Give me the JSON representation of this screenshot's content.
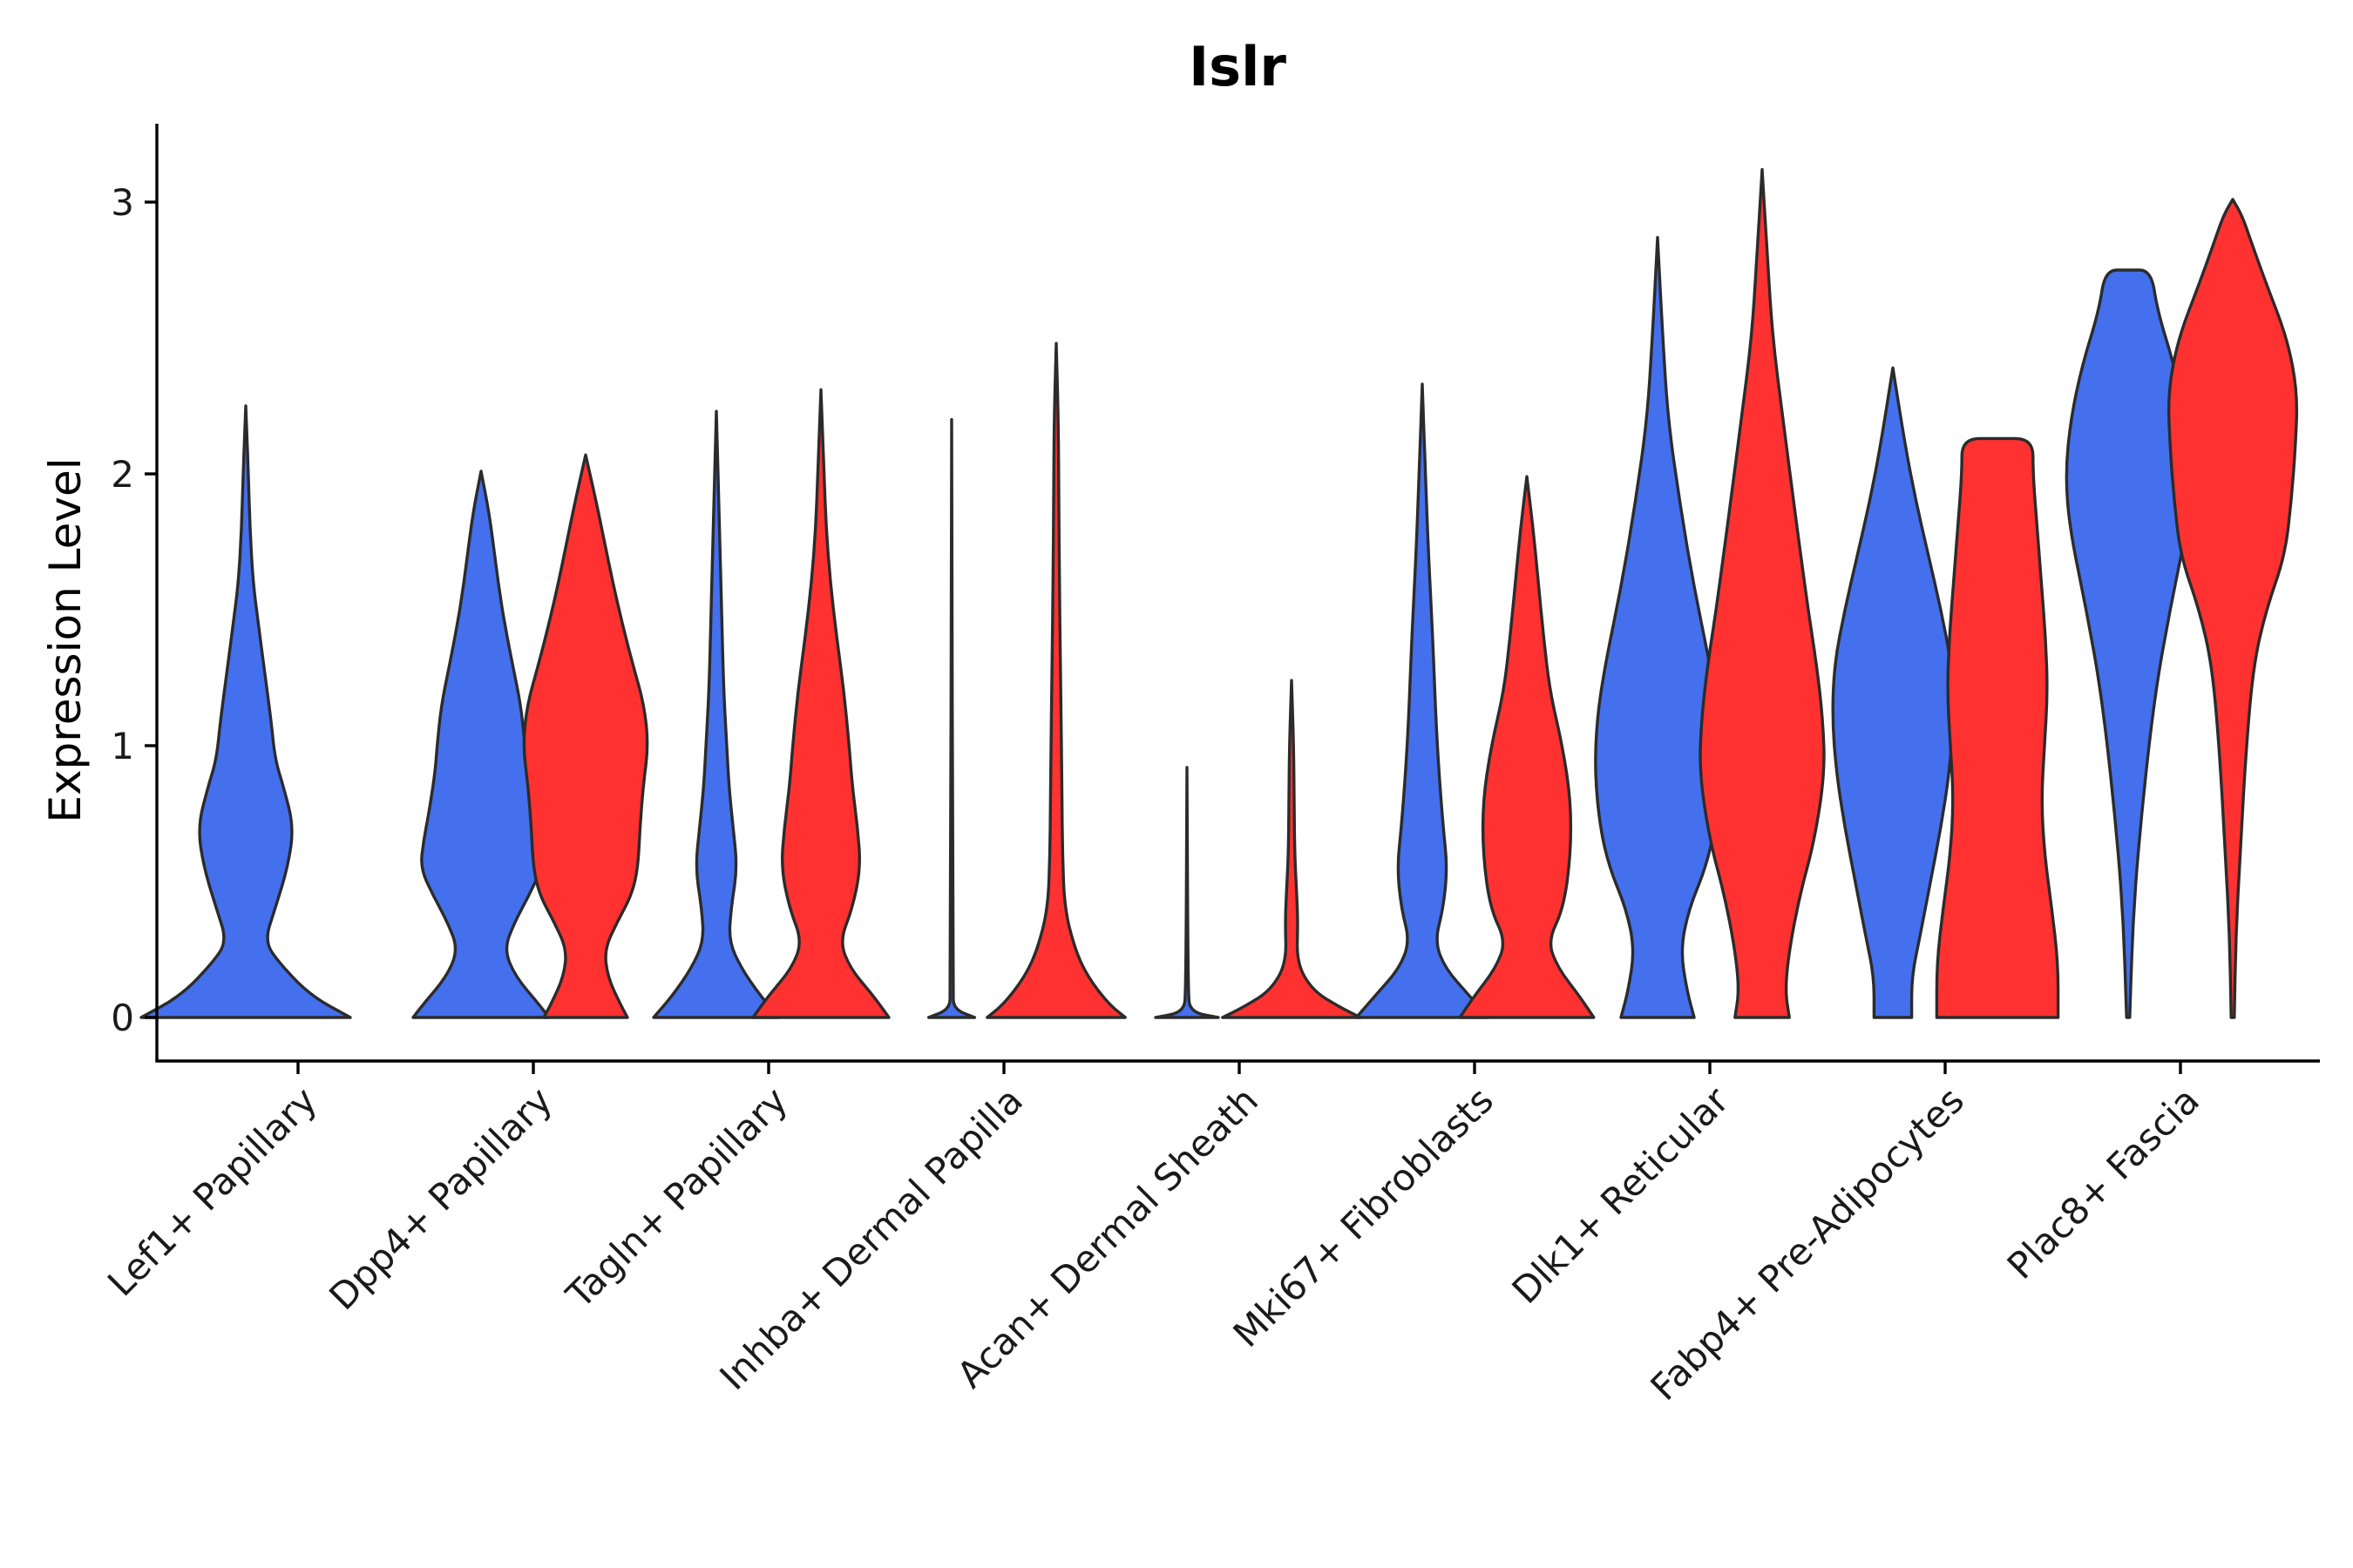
{
  "colors": {
    "blue": "#4470EE",
    "red": "#FF3131",
    "outline": "#2B2B2B",
    "axis": "#000000"
  },
  "chart_data": {
    "type": "violin",
    "title": "Islr",
    "xlabel": "",
    "ylabel": "Expression Level",
    "ylim": [
      -0.16,
      3.3
    ],
    "yticks": [
      0,
      1,
      2,
      3
    ],
    "ytick_labels": [
      "0",
      "1",
      "2",
      "3"
    ],
    "series": [
      {
        "name": "group1",
        "color": "#4470EE"
      },
      {
        "name": "group2",
        "color": "#FF3131"
      }
    ],
    "categories": [
      "Lef1+ Papillary",
      "Dpp4+ Papillary",
      "Tagln+ Papillary",
      "Inhba+ Dermal Papilla",
      "Acan+ Dermal Sheath",
      "Mki67+ Fibroblasts",
      "Dlk1+ Reticular",
      "Fabp4+ Pre-Adipocytes",
      "Plac8+ Fascia"
    ],
    "violins": [
      {
        "category": "Lef1+ Papillary",
        "series": "group1",
        "max": 2.25,
        "profile": [
          [
            0,
            1.0
          ],
          [
            0.08,
            0.62
          ],
          [
            0.2,
            0.32
          ],
          [
            0.28,
            0.18
          ],
          [
            0.4,
            0.28
          ],
          [
            0.55,
            0.4
          ],
          [
            0.7,
            0.46
          ],
          [
            0.85,
            0.36
          ],
          [
            0.95,
            0.28
          ],
          [
            1.1,
            0.24
          ],
          [
            1.3,
            0.17
          ],
          [
            1.45,
            0.12
          ],
          [
            1.6,
            0.07
          ],
          [
            1.8,
            0.04
          ],
          [
            2.0,
            0.025
          ],
          [
            2.25,
            0
          ]
        ]
      },
      {
        "category": "Dpp4+ Papillary",
        "series": "group1",
        "max": 2.01,
        "profile": [
          [
            0,
            0.65
          ],
          [
            0.05,
            0.55
          ],
          [
            0.15,
            0.33
          ],
          [
            0.25,
            0.22
          ],
          [
            0.35,
            0.32
          ],
          [
            0.45,
            0.46
          ],
          [
            0.55,
            0.58
          ],
          [
            0.65,
            0.55
          ],
          [
            0.75,
            0.5
          ],
          [
            0.9,
            0.44
          ],
          [
            1.0,
            0.42
          ],
          [
            1.15,
            0.38
          ],
          [
            1.3,
            0.3
          ],
          [
            1.5,
            0.2
          ],
          [
            1.7,
            0.13
          ],
          [
            1.85,
            0.08
          ],
          [
            2.01,
            0
          ]
        ]
      },
      {
        "category": "Dpp4+ Papillary",
        "series": "group2",
        "max": 2.07,
        "profile": [
          [
            0,
            0.4
          ],
          [
            0.05,
            0.33
          ],
          [
            0.15,
            0.21
          ],
          [
            0.25,
            0.18
          ],
          [
            0.35,
            0.3
          ],
          [
            0.45,
            0.44
          ],
          [
            0.55,
            0.5
          ],
          [
            0.7,
            0.52
          ],
          [
            0.85,
            0.55
          ],
          [
            1.0,
            0.6
          ],
          [
            1.15,
            0.56
          ],
          [
            1.3,
            0.45
          ],
          [
            1.45,
            0.35
          ],
          [
            1.6,
            0.26
          ],
          [
            1.75,
            0.18
          ],
          [
            1.9,
            0.1
          ],
          [
            2.07,
            0
          ]
        ]
      },
      {
        "category": "Tagln+ Papillary",
        "series": "group1",
        "max": 2.23,
        "profile": [
          [
            0,
            0.6
          ],
          [
            0.08,
            0.42
          ],
          [
            0.18,
            0.24
          ],
          [
            0.28,
            0.12
          ],
          [
            0.4,
            0.14
          ],
          [
            0.55,
            0.2
          ],
          [
            0.7,
            0.16
          ],
          [
            0.85,
            0.12
          ],
          [
            1.0,
            0.1
          ],
          [
            1.2,
            0.07
          ],
          [
            1.5,
            0.05
          ],
          [
            1.8,
            0.03
          ],
          [
            2.23,
            0
          ]
        ]
      },
      {
        "category": "Tagln+ Papillary",
        "series": "group2",
        "max": 2.31,
        "profile": [
          [
            0,
            0.65
          ],
          [
            0.08,
            0.5
          ],
          [
            0.18,
            0.28
          ],
          [
            0.28,
            0.18
          ],
          [
            0.4,
            0.3
          ],
          [
            0.55,
            0.38
          ],
          [
            0.7,
            0.35
          ],
          [
            0.85,
            0.3
          ],
          [
            1.0,
            0.27
          ],
          [
            1.2,
            0.22
          ],
          [
            1.4,
            0.15
          ],
          [
            1.6,
            0.09
          ],
          [
            1.8,
            0.05
          ],
          [
            2.0,
            0.03
          ],
          [
            2.31,
            0
          ]
        ]
      },
      {
        "category": "Inhba+ Dermal Papilla",
        "series": "group1",
        "max": 2.2,
        "profile": [
          [
            0,
            0.22
          ],
          [
            0.03,
            0.02
          ],
          [
            0.1,
            0.012
          ],
          [
            2.2,
            0
          ]
        ]
      },
      {
        "category": "Inhba+ Dermal Papilla",
        "series": "group2",
        "max": 2.48,
        "profile": [
          [
            0,
            0.66
          ],
          [
            0.05,
            0.5
          ],
          [
            0.15,
            0.3
          ],
          [
            0.25,
            0.18
          ],
          [
            0.4,
            0.08
          ],
          [
            0.6,
            0.06
          ],
          [
            0.8,
            0.055
          ],
          [
            1.0,
            0.05
          ],
          [
            1.3,
            0.04
          ],
          [
            1.6,
            0.03
          ],
          [
            1.9,
            0.025
          ],
          [
            2.2,
            0.02
          ],
          [
            2.48,
            0
          ]
        ]
      },
      {
        "category": "Acan+ Dermal Sheath",
        "series": "group1",
        "max": 0.92,
        "profile": [
          [
            0,
            0.3
          ],
          [
            0.02,
            0.03
          ],
          [
            0.1,
            0.01
          ],
          [
            0.92,
            0
          ]
        ]
      },
      {
        "category": "Acan+ Dermal Sheath",
        "series": "group2",
        "max": 1.24,
        "profile": [
          [
            0,
            0.66
          ],
          [
            0.04,
            0.45
          ],
          [
            0.1,
            0.2
          ],
          [
            0.2,
            0.05
          ],
          [
            0.35,
            0.06
          ],
          [
            0.45,
            0.05
          ],
          [
            0.6,
            0.03
          ],
          [
            0.8,
            0.025
          ],
          [
            1.0,
            0.02
          ],
          [
            1.24,
            0
          ]
        ]
      },
      {
        "category": "Mki67+ Fibroblasts",
        "series": "group1",
        "max": 2.33,
        "profile": [
          [
            0,
            0.63
          ],
          [
            0.08,
            0.45
          ],
          [
            0.18,
            0.22
          ],
          [
            0.28,
            0.12
          ],
          [
            0.4,
            0.2
          ],
          [
            0.55,
            0.24
          ],
          [
            0.7,
            0.2
          ],
          [
            0.9,
            0.16
          ],
          [
            1.1,
            0.13
          ],
          [
            1.4,
            0.1
          ],
          [
            1.7,
            0.06
          ],
          [
            2.0,
            0.03
          ],
          [
            2.33,
            0
          ]
        ]
      },
      {
        "category": "Mki67+ Fibroblasts",
        "series": "group2",
        "max": 1.99,
        "profile": [
          [
            0,
            0.64
          ],
          [
            0.08,
            0.5
          ],
          [
            0.18,
            0.3
          ],
          [
            0.28,
            0.2
          ],
          [
            0.4,
            0.35
          ],
          [
            0.6,
            0.42
          ],
          [
            0.8,
            0.42
          ],
          [
            1.0,
            0.34
          ],
          [
            1.2,
            0.22
          ],
          [
            1.4,
            0.16
          ],
          [
            1.6,
            0.11
          ],
          [
            1.8,
            0.06
          ],
          [
            1.99,
            0
          ]
        ]
      },
      {
        "category": "Dlk1+ Reticular",
        "series": "group1",
        "max": 2.87,
        "profile": [
          [
            0,
            0.35
          ],
          [
            0.1,
            0.28
          ],
          [
            0.25,
            0.22
          ],
          [
            0.4,
            0.3
          ],
          [
            0.55,
            0.46
          ],
          [
            0.7,
            0.55
          ],
          [
            0.9,
            0.6
          ],
          [
            1.1,
            0.58
          ],
          [
            1.3,
            0.5
          ],
          [
            1.6,
            0.34
          ],
          [
            1.9,
            0.21
          ],
          [
            2.2,
            0.1
          ],
          [
            2.5,
            0.05
          ],
          [
            2.87,
            0
          ]
        ]
      },
      {
        "category": "Dlk1+ Reticular",
        "series": "group2",
        "max": 3.12,
        "profile": [
          [
            0,
            0.26
          ],
          [
            0.1,
            0.22
          ],
          [
            0.25,
            0.26
          ],
          [
            0.45,
            0.36
          ],
          [
            0.65,
            0.5
          ],
          [
            0.9,
            0.6
          ],
          [
            1.1,
            0.58
          ],
          [
            1.3,
            0.52
          ],
          [
            1.5,
            0.44
          ],
          [
            1.7,
            0.37
          ],
          [
            1.9,
            0.3
          ],
          [
            2.2,
            0.2
          ],
          [
            2.5,
            0.1
          ],
          [
            2.8,
            0.05
          ],
          [
            3.12,
            0
          ]
        ]
      },
      {
        "category": "Fabp4+ Pre-Adipocytes",
        "series": "group1",
        "max": 2.39,
        "profile": [
          [
            0,
            0.18
          ],
          [
            0.15,
            0.18
          ],
          [
            0.3,
            0.26
          ],
          [
            0.5,
            0.36
          ],
          [
            0.7,
            0.46
          ],
          [
            0.9,
            0.54
          ],
          [
            1.1,
            0.58
          ],
          [
            1.3,
            0.56
          ],
          [
            1.5,
            0.46
          ],
          [
            1.7,
            0.34
          ],
          [
            1.9,
            0.22
          ],
          [
            2.1,
            0.12
          ],
          [
            2.39,
            0
          ]
        ]
      },
      {
        "category": "Fabp4+ Pre-Adipocytes",
        "series": "group2",
        "max": 2.13,
        "profile": [
          [
            0,
            0.58
          ],
          [
            0.2,
            0.58
          ],
          [
            0.4,
            0.52
          ],
          [
            0.6,
            0.45
          ],
          [
            0.8,
            0.42
          ],
          [
            1.0,
            0.45
          ],
          [
            1.2,
            0.48
          ],
          [
            1.4,
            0.46
          ],
          [
            1.6,
            0.42
          ],
          [
            1.8,
            0.38
          ],
          [
            2.0,
            0.34
          ],
          [
            2.13,
            0.34
          ],
          [
            2.1301,
            0
          ]
        ]
      },
      {
        "category": "Plac8+ Fascia",
        "series": "group1",
        "max": 2.75,
        "profile": [
          [
            0,
            0.015
          ],
          [
            0.4,
            0.05
          ],
          [
            0.8,
            0.14
          ],
          [
            1.2,
            0.26
          ],
          [
            1.5,
            0.4
          ],
          [
            1.8,
            0.56
          ],
          [
            2.0,
            0.6
          ],
          [
            2.2,
            0.55
          ],
          [
            2.4,
            0.44
          ],
          [
            2.6,
            0.28
          ],
          [
            2.75,
            0.22
          ],
          [
            2.7501,
            0
          ]
        ]
      },
      {
        "category": "Plac8+ Fascia",
        "series": "group2",
        "max": 3.01,
        "profile": [
          [
            0,
            0.015
          ],
          [
            0.3,
            0.03
          ],
          [
            0.6,
            0.07
          ],
          [
            1.0,
            0.13
          ],
          [
            1.3,
            0.2
          ],
          [
            1.5,
            0.32
          ],
          [
            1.7,
            0.5
          ],
          [
            1.9,
            0.56
          ],
          [
            2.1,
            0.6
          ],
          [
            2.3,
            0.62
          ],
          [
            2.5,
            0.52
          ],
          [
            2.7,
            0.32
          ],
          [
            2.85,
            0.18
          ],
          [
            2.95,
            0.09
          ],
          [
            3.01,
            0
          ]
        ]
      }
    ]
  }
}
